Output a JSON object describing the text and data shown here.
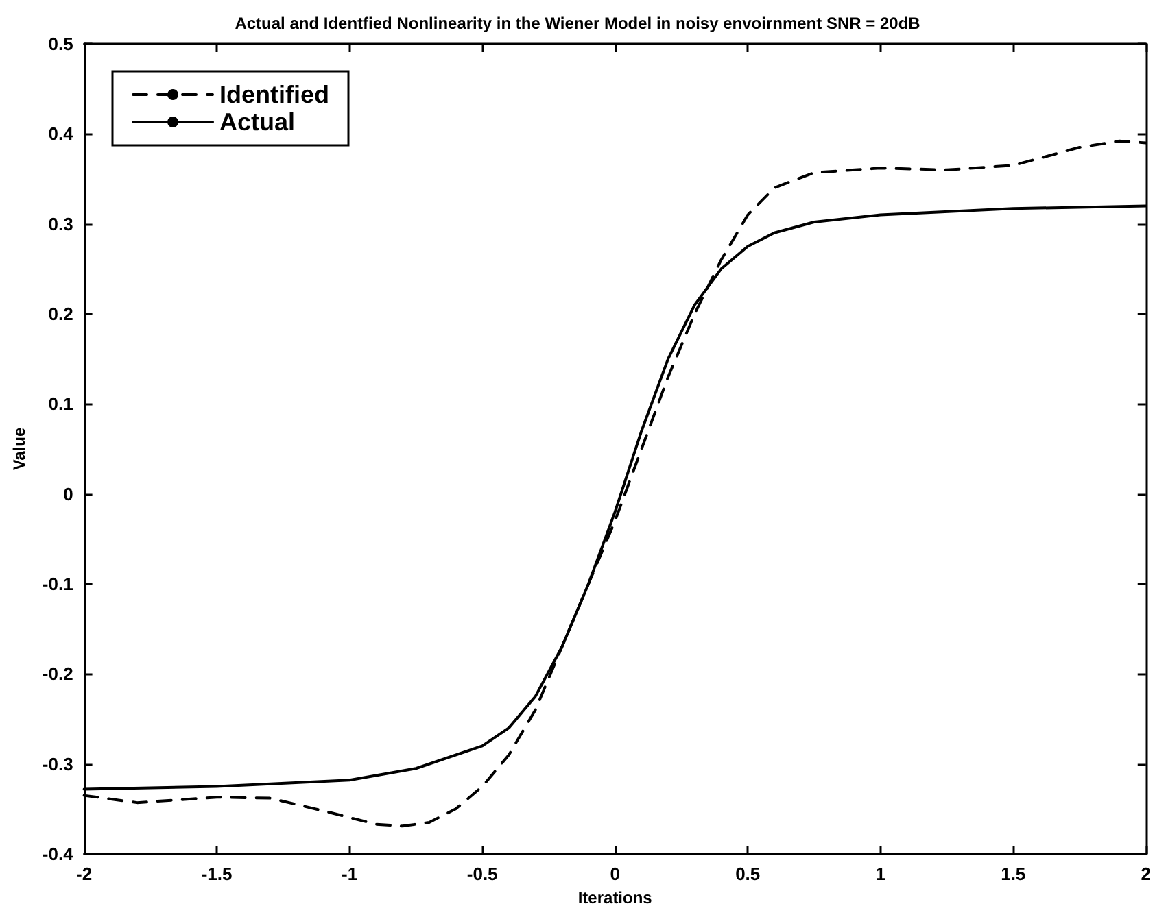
{
  "chart_data": {
    "type": "line",
    "title": "Actual and Identfied Nonlinearity in the Wiener Model in noisy envoirnment SNR = 20dB",
    "xlabel": "Iterations",
    "ylabel": "Value",
    "series": [
      {
        "name": "Identified",
        "color": "#000000",
        "line_style": "dashed",
        "x": [
          -2,
          -1.8,
          -1.5,
          -1.3,
          -1.1,
          -0.9,
          -0.8,
          -0.7,
          -0.6,
          -0.5,
          -0.4,
          -0.3,
          -0.2,
          -0.1,
          0,
          0.1,
          0.2,
          0.3,
          0.4,
          0.5,
          0.6,
          0.75,
          1,
          1.25,
          1.5,
          1.75,
          1.9,
          2
        ],
        "values": [
          -0.335,
          -0.343,
          -0.337,
          -0.338,
          -0.352,
          -0.367,
          -0.369,
          -0.365,
          -0.35,
          -0.325,
          -0.29,
          -0.24,
          -0.17,
          -0.1,
          -0.03,
          0.05,
          0.13,
          0.2,
          0.26,
          0.31,
          0.34,
          0.357,
          0.362,
          0.36,
          0.365,
          0.385,
          0.392,
          0.39
        ]
      },
      {
        "name": "Actual",
        "color": "#000000",
        "line_style": "solid",
        "x": [
          -2,
          -1.5,
          -1,
          -0.75,
          -0.5,
          -0.4,
          -0.3,
          -0.2,
          -0.1,
          0,
          0.1,
          0.2,
          0.3,
          0.4,
          0.5,
          0.6,
          0.75,
          1,
          1.5,
          2
        ],
        "values": [
          -0.328,
          -0.325,
          -0.318,
          -0.305,
          -0.28,
          -0.26,
          -0.225,
          -0.17,
          -0.1,
          -0.02,
          0.07,
          0.15,
          0.21,
          0.25,
          0.275,
          0.29,
          0.302,
          0.31,
          0.317,
          0.32
        ]
      }
    ],
    "xlim": [
      -2,
      2
    ],
    "xticks": [
      -2,
      -1.5,
      -1,
      -0.5,
      0,
      0.5,
      1,
      1.5,
      2
    ],
    "ylim": [
      -0.4,
      0.5
    ],
    "yticks": [
      -0.4,
      -0.3,
      -0.2,
      -0.1,
      0,
      0.1,
      0.2,
      0.3,
      0.4,
      0.5
    ],
    "grid": false,
    "legend": "top left",
    "marker": "none"
  }
}
